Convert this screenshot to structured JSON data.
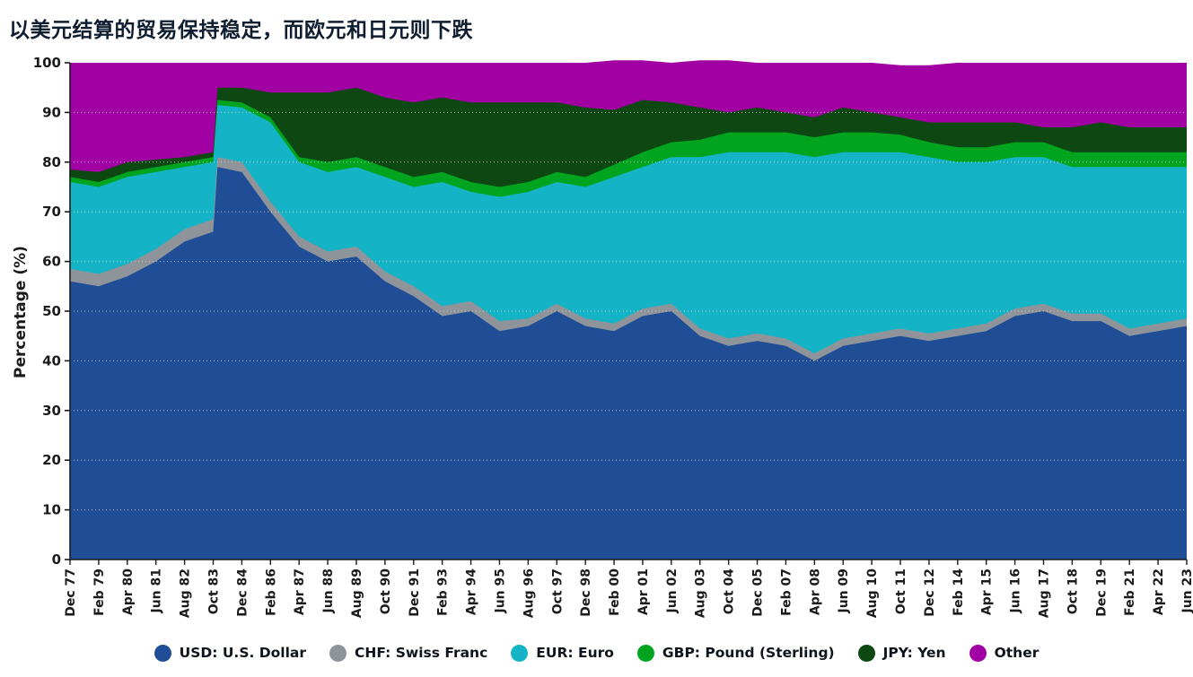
{
  "title": "以美元结算的贸易保持稳定，而欧元和日元则下跌",
  "chart_data": {
    "type": "area",
    "stacked": true,
    "unit": "percent",
    "title": "以美元结算的贸易保持稳定，而欧元和日元则下跌",
    "xlabel": "",
    "ylabel": "Percentage (%)",
    "ylim": [
      0,
      100
    ],
    "yticks": [
      0,
      10,
      20,
      30,
      40,
      50,
      60,
      70,
      80,
      90,
      100
    ],
    "grid": "dotted-horizontal",
    "legend_position": "bottom",
    "x_labels": [
      "Dec 77",
      "Feb 79",
      "Apr 80",
      "Jun 81",
      "Aug 82",
      "Oct 83",
      "Dec 84",
      "Feb 86",
      "Apr 87",
      "Jun 88",
      "Aug 89",
      "Oct 90",
      "Dec 91",
      "Feb 93",
      "Apr 94",
      "Jun 95",
      "Aug 96",
      "Oct 97",
      "Dec 98",
      "Feb 00",
      "Apr 01",
      "Jun 02",
      "Aug 03",
      "Oct 04",
      "Dec 05",
      "Feb 07",
      "Apr 08",
      "Jun 09",
      "Aug 10",
      "Oct 11",
      "Dec 12",
      "Feb 14",
      "Apr 15",
      "Jun 16",
      "Aug 17",
      "Oct 18",
      "Dec 19",
      "Feb 21",
      "Apr 22",
      "Jun 23"
    ],
    "x": [
      0,
      1,
      2,
      3,
      4,
      5,
      5.15,
      6,
      7,
      8,
      9,
      10,
      11,
      12,
      13,
      14,
      15,
      16,
      17,
      18,
      19,
      20,
      21,
      22,
      23,
      24,
      25,
      26,
      27,
      28,
      29,
      30,
      31,
      32,
      33,
      34,
      35,
      36,
      37,
      38,
      39
    ],
    "series": [
      {
        "id": "usd",
        "name": "USD: U.S. Dollar",
        "color": "#1f4e96",
        "values": [
          56,
          55,
          57,
          60,
          64,
          66,
          79,
          78,
          70,
          63,
          60,
          61,
          56,
          53,
          49,
          50,
          46,
          47,
          50,
          47,
          46,
          49,
          50,
          45,
          43,
          44,
          43,
          40,
          43,
          44,
          45,
          44,
          45,
          46,
          49,
          50,
          48,
          48,
          45,
          46,
          47
        ]
      },
      {
        "id": "chf",
        "name": "CHF: Swiss Franc",
        "color": "#8e9499",
        "values": [
          2.5,
          2.5,
          2.5,
          2.5,
          2.5,
          2.5,
          2,
          2,
          2,
          2,
          2,
          2,
          2,
          2,
          2,
          2,
          2,
          1.5,
          1.5,
          1.5,
          1.5,
          1.5,
          1.5,
          1.5,
          1.5,
          1.5,
          1.5,
          1.5,
          1.5,
          1.5,
          1.5,
          1.5,
          1.5,
          1.5,
          1.5,
          1.5,
          1.5,
          1.5,
          1.5,
          1.5,
          1.5
        ]
      },
      {
        "id": "eur",
        "name": "EUR: Euro",
        "color": "#14b4c6",
        "values": [
          17.5,
          17.5,
          17.5,
          15.5,
          12.5,
          11.5,
          10.5,
          11,
          16,
          15,
          16,
          16,
          19,
          20,
          25,
          22,
          25,
          25.5,
          24.5,
          26.5,
          29.5,
          28.5,
          29.5,
          34.5,
          37.5,
          36.5,
          37.5,
          39.5,
          37.5,
          36.5,
          35.5,
          35.5,
          33.5,
          32.5,
          30.5,
          29.5,
          29.5,
          29.5,
          32.5,
          31.5,
          30.5
        ]
      },
      {
        "id": "gbp",
        "name": "GBP: Pound (Sterling)",
        "color": "#00a41f",
        "values": [
          1,
          1,
          1,
          1,
          1,
          1,
          1,
          1,
          1,
          1,
          2,
          2,
          2,
          2,
          2,
          2,
          2,
          2,
          2,
          2,
          2.5,
          3,
          3,
          3.5,
          4,
          4,
          4,
          4,
          4,
          4,
          3.5,
          3,
          3,
          3,
          3,
          3,
          3,
          3,
          3,
          3,
          3
        ]
      },
      {
        "id": "jpy",
        "name": "JPY: Yen",
        "color": "#0d4712",
        "values": [
          1.5,
          2,
          2,
          1.5,
          1,
          1,
          2.5,
          3,
          5,
          13,
          14,
          14,
          14,
          15,
          15,
          16,
          17,
          16,
          14,
          14,
          11,
          10.5,
          8,
          6.5,
          4,
          5,
          4,
          4,
          5,
          4,
          3.5,
          4,
          5,
          5,
          4,
          3,
          5,
          6,
          5,
          5,
          5
        ]
      },
      {
        "id": "other",
        "name": "Other",
        "color": "#a100a3",
        "values": [
          21.5,
          22,
          20,
          19.5,
          19,
          18,
          5,
          5,
          6,
          6,
          6,
          5,
          7,
          8,
          7,
          8,
          8,
          8,
          8,
          9,
          10,
          8,
          8,
          9.5,
          10.5,
          9,
          10,
          11,
          9,
          10,
          10.5,
          11.5,
          12,
          12,
          12,
          13,
          13,
          12,
          13,
          13,
          13
        ]
      }
    ]
  }
}
